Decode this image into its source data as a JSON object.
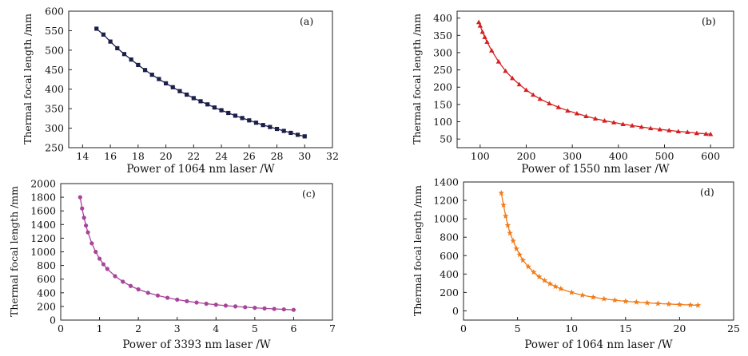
{
  "chart_data": [
    {
      "type": "line",
      "panel_label": "(a)",
      "xlabel": "Power of 1064 nm laser /W",
      "ylabel": "Thermal focal length /mm",
      "xlim": [
        13,
        32
      ],
      "ylim": [
        250,
        600
      ],
      "xticks": [
        14,
        16,
        18,
        20,
        22,
        24,
        26,
        28,
        30,
        32
      ],
      "yticks": [
        250,
        300,
        350,
        400,
        450,
        500,
        550,
        600
      ],
      "color": "#1b1f4a",
      "marker": "square",
      "series": [
        {
          "x": [
            15,
            15.5,
            16,
            16.5,
            17,
            17.5,
            18,
            18.5,
            19,
            19.5,
            20,
            20.5,
            21,
            21.5,
            22,
            22.5,
            23,
            23.5,
            24,
            24.5,
            25,
            25.5,
            26,
            26.5,
            27,
            27.5,
            28,
            28.5,
            29,
            29.5,
            30
          ],
          "y": [
            555,
            540,
            522,
            505,
            490,
            476,
            462,
            449,
            437,
            426,
            415,
            405,
            395,
            386,
            377,
            369,
            361,
            353,
            346,
            339,
            332,
            326,
            320,
            314,
            308,
            303,
            298,
            293,
            288,
            283,
            279
          ]
        }
      ]
    },
    {
      "type": "line",
      "panel_label": "(b)",
      "xlabel": "Power of 1550 nm laser /W",
      "ylabel": "Thermal focal length /mm",
      "xlim": [
        50,
        650
      ],
      "ylim": [
        25,
        420
      ],
      "xticks": [
        100,
        200,
        300,
        400,
        500,
        600
      ],
      "yticks": [
        50,
        100,
        150,
        200,
        250,
        300,
        350,
        400
      ],
      "color": "#d42020",
      "marker": "triangle",
      "series": [
        {
          "x": [
            97,
            100,
            105,
            110,
            115,
            125,
            140,
            155,
            170,
            185,
            200,
            215,
            230,
            250,
            270,
            290,
            310,
            330,
            350,
            370,
            390,
            410,
            430,
            450,
            470,
            490,
            510,
            530,
            550,
            570,
            590,
            600
          ],
          "y": [
            388,
            378,
            360,
            345,
            331,
            306,
            274,
            247,
            226,
            208,
            192,
            178,
            166,
            153,
            142,
            132,
            124,
            116,
            109,
            103,
            98,
            93,
            89,
            85,
            81,
            78,
            75,
            72,
            70,
            67,
            65,
            64
          ]
        }
      ]
    },
    {
      "type": "line",
      "panel_label": "(c)",
      "xlabel": "Power of 3393 nm laser /W",
      "ylabel": "Thermal focal length /mm",
      "xlim": [
        0,
        7
      ],
      "ylim": [
        0,
        2000
      ],
      "xticks": [
        0,
        1,
        2,
        3,
        4,
        5,
        6,
        7
      ],
      "yticks": [
        0,
        200,
        400,
        600,
        800,
        1000,
        1200,
        1400,
        1600,
        1800,
        2000
      ],
      "color": "#a8449a",
      "marker": "circle",
      "series": [
        {
          "x": [
            0.5,
            0.55,
            0.6,
            0.65,
            0.7,
            0.8,
            0.9,
            1.0,
            1.1,
            1.2,
            1.4,
            1.6,
            1.8,
            2.0,
            2.25,
            2.5,
            2.75,
            3.0,
            3.25,
            3.5,
            3.75,
            4.0,
            4.25,
            4.5,
            4.75,
            5.0,
            5.25,
            5.5,
            5.75,
            6.0
          ],
          "y": [
            1800,
            1636,
            1500,
            1385,
            1286,
            1125,
            1000,
            900,
            818,
            750,
            643,
            563,
            500,
            450,
            400,
            360,
            327,
            300,
            277,
            257,
            240,
            225,
            212,
            200,
            189,
            180,
            171,
            164,
            157,
            150
          ]
        }
      ]
    },
    {
      "type": "line",
      "panel_label": "(d)",
      "xlabel": "Power of 1064 nm laser /W",
      "ylabel": "Thermal focal length /mm",
      "xlim": [
        0,
        25
      ],
      "ylim": [
        -100,
        1400
      ],
      "xticks": [
        0,
        5,
        10,
        15,
        20,
        25
      ],
      "yticks": [
        0,
        200,
        400,
        600,
        800,
        1000,
        1200,
        1400
      ],
      "color": "#f07c1a",
      "marker": "star",
      "series": [
        {
          "x": [
            3.5,
            3.7,
            3.9,
            4.1,
            4.3,
            4.6,
            4.9,
            5.2,
            5.5,
            6,
            6.5,
            7,
            7.5,
            8,
            8.5,
            9,
            10,
            11,
            12,
            13,
            14,
            15,
            16,
            17,
            18,
            19,
            20,
            21,
            21.7
          ],
          "y": [
            1280,
            1150,
            1030,
            930,
            845,
            760,
            675,
            610,
            550,
            480,
            420,
            370,
            330,
            295,
            265,
            240,
            200,
            170,
            148,
            130,
            116,
            104,
            95,
            87,
            80,
            74,
            69,
            64,
            60
          ]
        }
      ]
    }
  ]
}
